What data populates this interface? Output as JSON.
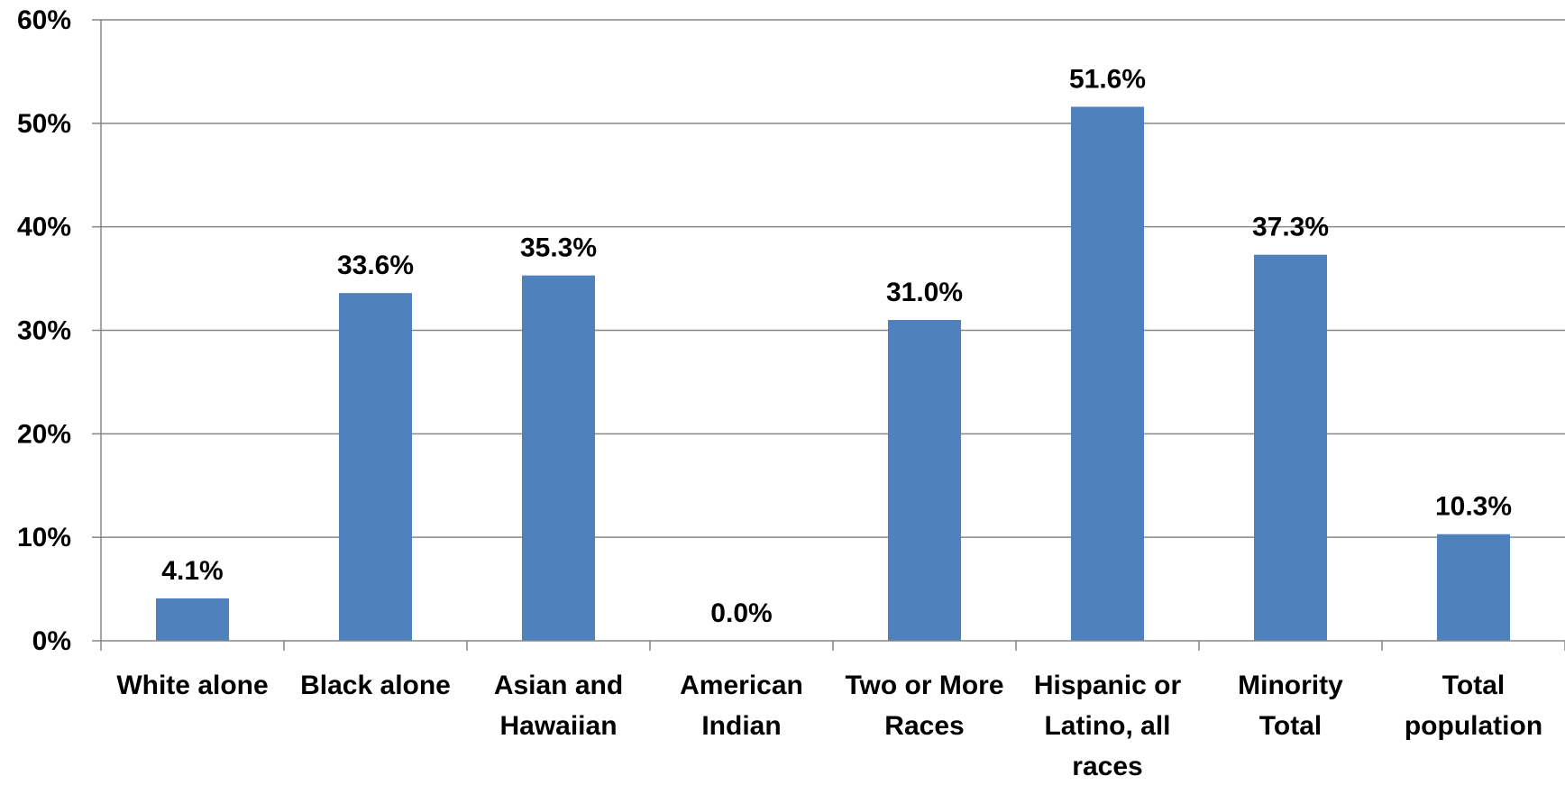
{
  "chart_data": {
    "type": "bar",
    "categories": [
      [
        "White alone"
      ],
      [
        "Black alone"
      ],
      [
        "Asian and",
        "Hawaiian"
      ],
      [
        "American",
        "Indian"
      ],
      [
        "Two or More",
        "Races"
      ],
      [
        "Hispanic or",
        "Latino, all",
        "races"
      ],
      [
        "Minority",
        "Total"
      ],
      [
        "Total",
        "population"
      ]
    ],
    "values": [
      4.1,
      33.6,
      35.3,
      0.0,
      31.0,
      51.6,
      37.3,
      10.3
    ],
    "data_labels": [
      "4.1%",
      "33.6%",
      "35.3%",
      "0.0%",
      "31.0%",
      "51.6%",
      "37.3%",
      "10.3%"
    ],
    "yticks": [
      0,
      10,
      20,
      30,
      40,
      50,
      60
    ],
    "ytick_labels": [
      "0%",
      "10%",
      "20%",
      "30%",
      "40%",
      "50%",
      "60%"
    ],
    "ylim": [
      0,
      60
    ],
    "title": "",
    "xlabel": "",
    "ylabel": "",
    "grid": true,
    "legend": "none",
    "colors": {
      "bar": "#4F81BD",
      "grid": "#868686",
      "axis": "#868686",
      "text": "#000000"
    }
  }
}
